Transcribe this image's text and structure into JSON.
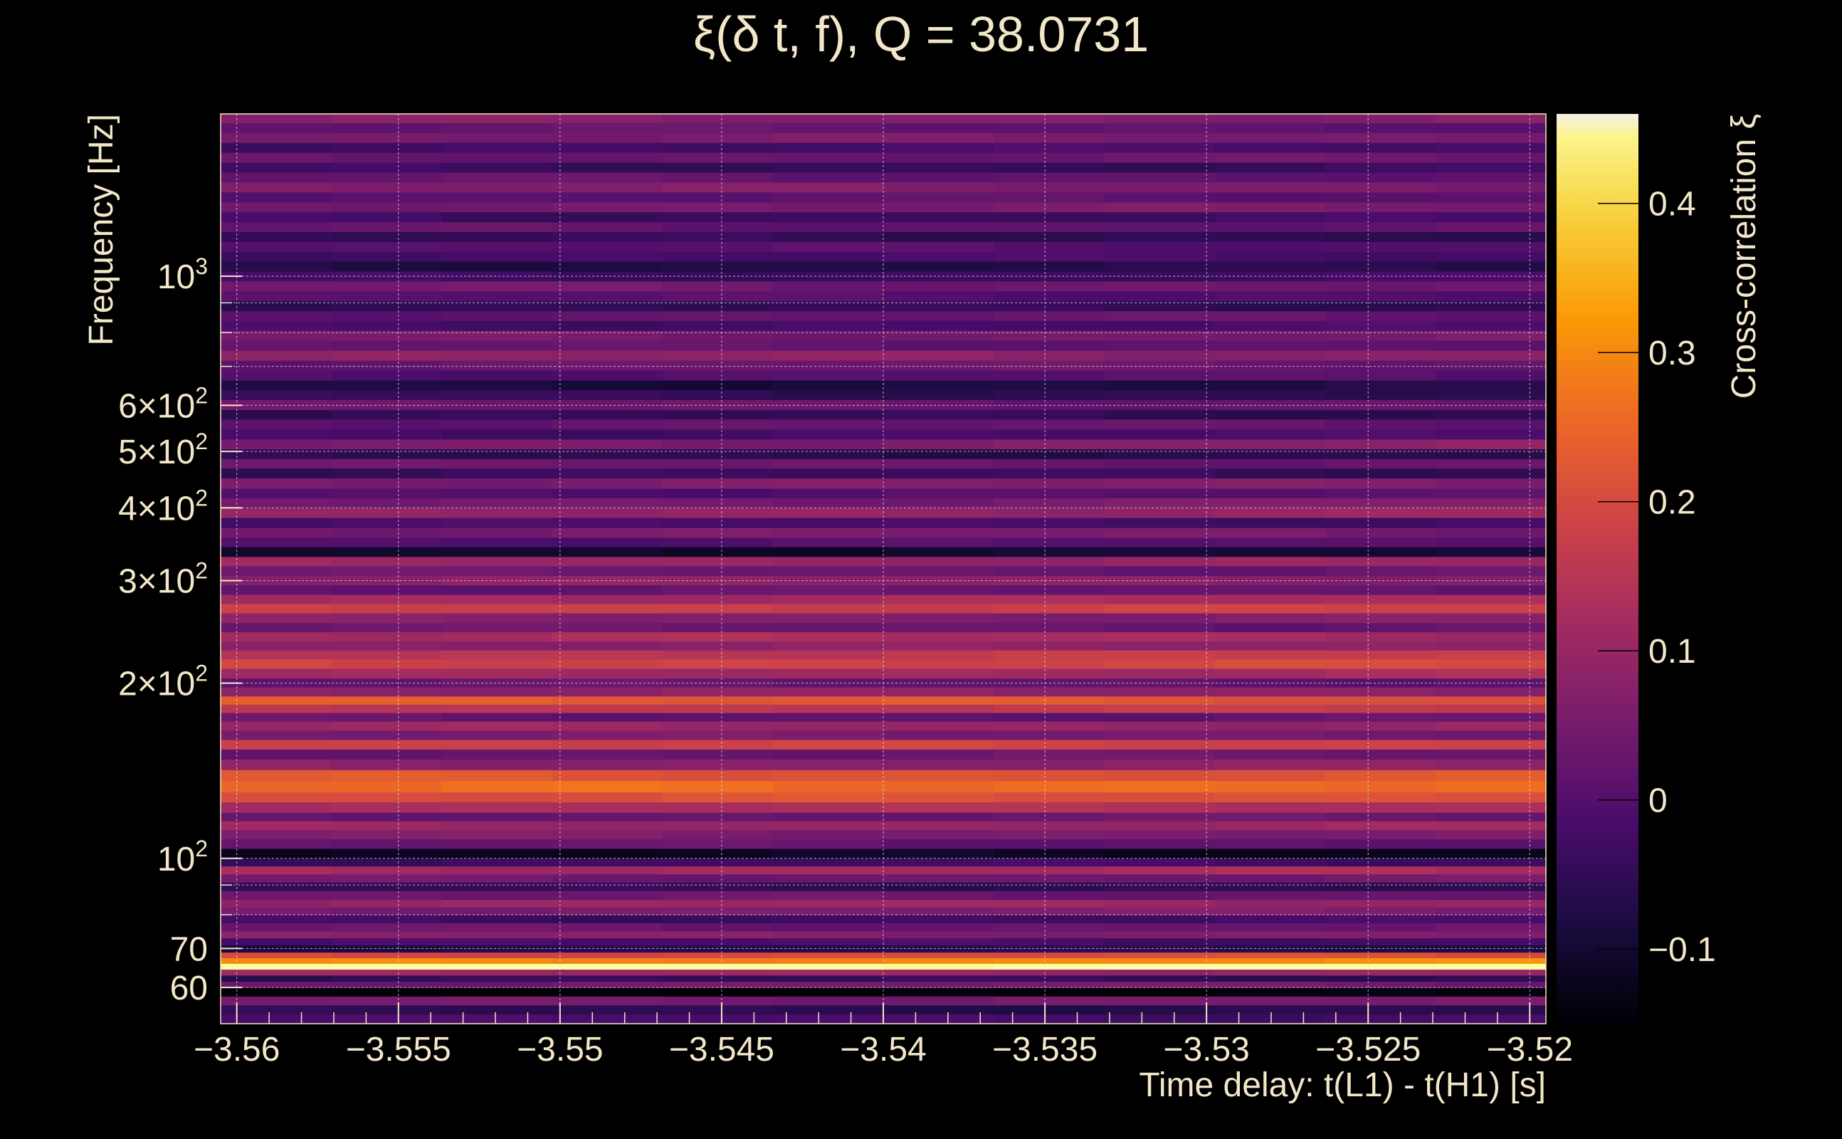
{
  "chart_data": {
    "type": "heatmap",
    "title": "ξ(δ t, f), Q = 38.0731",
    "xlabel": "Time delay: t(L1) - t(H1) [s]",
    "ylabel": "Frequency [Hz]",
    "colorbar_label": "Cross-correlation ξ",
    "xlim": [
      -3.5605,
      -3.5195
    ],
    "ylim": [
      52,
      1900
    ],
    "y_scale": "log",
    "grid": true,
    "x_ticks": [
      {
        "value": -3.56,
        "label": "−3.56"
      },
      {
        "value": -3.555,
        "label": "−3.555"
      },
      {
        "value": -3.55,
        "label": "−3.55"
      },
      {
        "value": -3.545,
        "label": "−3.545"
      },
      {
        "value": -3.54,
        "label": "−3.54"
      },
      {
        "value": -3.535,
        "label": "−3.535"
      },
      {
        "value": -3.53,
        "label": "−3.53"
      },
      {
        "value": -3.525,
        "label": "−3.525"
      },
      {
        "value": -3.52,
        "label": "−3.52"
      }
    ],
    "y_ticks": [
      {
        "value": 60,
        "base": "60",
        "exp": ""
      },
      {
        "value": 70,
        "base": "70",
        "exp": ""
      },
      {
        "value": 100,
        "base": "10",
        "exp": "2"
      },
      {
        "value": 200,
        "base": "2×10",
        "exp": "2"
      },
      {
        "value": 300,
        "base": "3×10",
        "exp": "2"
      },
      {
        "value": 400,
        "base": "4×10",
        "exp": "2"
      },
      {
        "value": 500,
        "base": "5×10",
        "exp": "2"
      },
      {
        "value": 600,
        "base": "6×10",
        "exp": "2"
      },
      {
        "value": 1000,
        "base": "10",
        "exp": "3"
      }
    ],
    "y_minor_gridlines": [
      80,
      90,
      700,
      800,
      900
    ],
    "colorbar": {
      "range": [
        -0.15,
        0.46
      ],
      "ticks": [
        {
          "value": -0.1,
          "label": "−0.1"
        },
        {
          "value": 0,
          "label": "0"
        },
        {
          "value": 0.1,
          "label": "0.1"
        },
        {
          "value": 0.2,
          "label": "0.2"
        },
        {
          "value": 0.3,
          "label": "0.3"
        },
        {
          "value": 0.4,
          "label": "0.4"
        }
      ],
      "colormap": [
        "#000004",
        "#1b0c41",
        "#4a0c6b",
        "#781c6d",
        "#a52c60",
        "#cf4446",
        "#ed6925",
        "#fb9b06",
        "#f7d13d",
        "#fcffa4"
      ],
      "top_color": "#f4efe6"
    },
    "bands": [
      {
        "f_low": 52,
        "f_high": 54,
        "value": -0.02,
        "trend": 0.0
      },
      {
        "f_low": 54,
        "f_high": 56,
        "value": -0.06,
        "trend": 0.0
      },
      {
        "f_low": 56,
        "f_high": 58,
        "value": 0.05,
        "trend": 0.0
      },
      {
        "f_low": 58,
        "f_high": 60,
        "value": -0.15,
        "trend": 0.0
      },
      {
        "f_low": 60,
        "f_high": 61.5,
        "value": 0.04,
        "trend": 0.0
      },
      {
        "f_low": 61.5,
        "f_high": 63,
        "value": -0.05,
        "trend": 0.0
      },
      {
        "f_low": 63,
        "f_high": 64.5,
        "value": 0.1,
        "trend": 0.0
      },
      {
        "f_low": 64.5,
        "f_high": 66,
        "value": 0.47,
        "trend": 0.0
      },
      {
        "f_low": 66,
        "f_high": 67.5,
        "value": 0.3,
        "trend": 0.0
      },
      {
        "f_low": 67.5,
        "f_high": 69,
        "value": 0.2,
        "trend": 0.0
      },
      {
        "f_low": 69,
        "f_high": 71,
        "value": -0.07,
        "trend": 0.0
      },
      {
        "f_low": 71,
        "f_high": 73,
        "value": -0.02,
        "trend": 0.0
      },
      {
        "f_low": 73,
        "f_high": 75,
        "value": 0.07,
        "trend": 0.0
      },
      {
        "f_low": 75,
        "f_high": 77.5,
        "value": 0.03,
        "trend": 0.0
      },
      {
        "f_low": 77.5,
        "f_high": 80,
        "value": -0.03,
        "trend": 0.0
      },
      {
        "f_low": 80,
        "f_high": 82.5,
        "value": 0.06,
        "trend": 0.0
      },
      {
        "f_low": 82.5,
        "f_high": 85,
        "value": 0.1,
        "trend": 0.0
      },
      {
        "f_low": 85,
        "f_high": 88,
        "value": 0.03,
        "trend": 0.0
      },
      {
        "f_low": 88,
        "f_high": 91,
        "value": -0.05,
        "trend": 0.0
      },
      {
        "f_low": 91,
        "f_high": 94,
        "value": 0.04,
        "trend": 0.0
      },
      {
        "f_low": 94,
        "f_high": 97,
        "value": 0.12,
        "trend": 0.0
      },
      {
        "f_low": 97,
        "f_high": 100,
        "value": -0.03,
        "trend": 0.0
      },
      {
        "f_low": 100,
        "f_high": 104,
        "value": -0.12,
        "trend": 0.0
      },
      {
        "f_low": 104,
        "f_high": 108,
        "value": 0.02,
        "trend": 0.0
      },
      {
        "f_low": 108,
        "f_high": 112,
        "value": 0.06,
        "trend": 0.0
      },
      {
        "f_low": 112,
        "f_high": 116,
        "value": 0.1,
        "trend": 0.0
      },
      {
        "f_low": 116,
        "f_high": 120,
        "value": 0.03,
        "trend": 0.0
      },
      {
        "f_low": 120,
        "f_high": 125,
        "value": 0.13,
        "trend": 0.0
      },
      {
        "f_low": 125,
        "f_high": 130,
        "value": 0.2,
        "trend": 0.02
      },
      {
        "f_low": 130,
        "f_high": 136,
        "value": 0.25,
        "trend": 0.02
      },
      {
        "f_low": 136,
        "f_high": 142,
        "value": 0.22,
        "trend": 0.0
      },
      {
        "f_low": 142,
        "f_high": 148,
        "value": 0.08,
        "trend": 0.0
      },
      {
        "f_low": 148,
        "f_high": 154,
        "value": 0.03,
        "trend": 0.0
      },
      {
        "f_low": 154,
        "f_high": 160,
        "value": 0.18,
        "trend": 0.0
      },
      {
        "f_low": 160,
        "f_high": 166,
        "value": 0.05,
        "trend": 0.0
      },
      {
        "f_low": 166,
        "f_high": 172,
        "value": 0.1,
        "trend": 0.0
      },
      {
        "f_low": 172,
        "f_high": 178,
        "value": 0.02,
        "trend": 0.0
      },
      {
        "f_low": 178,
        "f_high": 184,
        "value": 0.16,
        "trend": 0.0
      },
      {
        "f_low": 184,
        "f_high": 190,
        "value": 0.25,
        "trend": -0.05
      },
      {
        "f_low": 190,
        "f_high": 197,
        "value": 0.08,
        "trend": 0.0
      },
      {
        "f_low": 197,
        "f_high": 204,
        "value": 0.02,
        "trend": 0.0
      },
      {
        "f_low": 204,
        "f_high": 212,
        "value": 0.1,
        "trend": 0.03
      },
      {
        "f_low": 212,
        "f_high": 220,
        "value": 0.18,
        "trend": 0.02
      },
      {
        "f_low": 220,
        "f_high": 228,
        "value": 0.15,
        "trend": 0.02
      },
      {
        "f_low": 228,
        "f_high": 236,
        "value": 0.08,
        "trend": 0.0
      },
      {
        "f_low": 236,
        "f_high": 245,
        "value": 0.12,
        "trend": 0.0
      },
      {
        "f_low": 245,
        "f_high": 254,
        "value": 0.03,
        "trend": 0.0
      },
      {
        "f_low": 254,
        "f_high": 264,
        "value": 0.07,
        "trend": 0.0
      },
      {
        "f_low": 264,
        "f_high": 274,
        "value": 0.18,
        "trend": 0.0
      },
      {
        "f_low": 274,
        "f_high": 284,
        "value": 0.12,
        "trend": 0.0
      },
      {
        "f_low": 284,
        "f_high": 295,
        "value": 0.02,
        "trend": 0.0
      },
      {
        "f_low": 295,
        "f_high": 306,
        "value": 0.08,
        "trend": 0.0
      },
      {
        "f_low": 306,
        "f_high": 318,
        "value": 0.03,
        "trend": 0.0
      },
      {
        "f_low": 318,
        "f_high": 330,
        "value": 0.1,
        "trend": 0.0
      },
      {
        "f_low": 330,
        "f_high": 343,
        "value": -0.1,
        "trend": 0.0
      },
      {
        "f_low": 343,
        "f_high": 356,
        "value": 0.0,
        "trend": 0.0
      },
      {
        "f_low": 356,
        "f_high": 370,
        "value": 0.05,
        "trend": 0.0
      },
      {
        "f_low": 370,
        "f_high": 385,
        "value": -0.02,
        "trend": 0.0
      },
      {
        "f_low": 385,
        "f_high": 400,
        "value": 0.08,
        "trend": 0.03
      },
      {
        "f_low": 400,
        "f_high": 416,
        "value": 0.04,
        "trend": 0.03
      },
      {
        "f_low": 416,
        "f_high": 432,
        "value": 0.0,
        "trend": 0.0
      },
      {
        "f_low": 432,
        "f_high": 450,
        "value": 0.06,
        "trend": 0.0
      },
      {
        "f_low": 450,
        "f_high": 468,
        "value": -0.04,
        "trend": 0.0
      },
      {
        "f_low": 468,
        "f_high": 486,
        "value": 0.03,
        "trend": 0.0
      },
      {
        "f_low": 486,
        "f_high": 505,
        "value": -0.06,
        "trend": 0.0
      },
      {
        "f_low": 505,
        "f_high": 525,
        "value": 0.05,
        "trend": 0.03
      },
      {
        "f_low": 525,
        "f_high": 546,
        "value": -0.02,
        "trend": 0.0
      },
      {
        "f_low": 546,
        "f_high": 568,
        "value": 0.02,
        "trend": 0.0
      },
      {
        "f_low": 568,
        "f_high": 590,
        "value": -0.05,
        "trend": 0.0
      },
      {
        "f_low": 590,
        "f_high": 614,
        "value": 0.03,
        "trend": 0.0
      },
      {
        "f_low": 614,
        "f_high": 638,
        "value": -0.04,
        "trend": -0.02
      },
      {
        "f_low": 638,
        "f_high": 663,
        "value": -0.08,
        "trend": 0.0
      },
      {
        "f_low": 663,
        "f_high": 690,
        "value": 0.0,
        "trend": 0.0
      },
      {
        "f_low": 690,
        "f_high": 717,
        "value": 0.03,
        "trend": 0.0
      },
      {
        "f_low": 717,
        "f_high": 746,
        "value": 0.08,
        "trend": 0.0
      },
      {
        "f_low": 746,
        "f_high": 776,
        "value": 0.02,
        "trend": 0.0
      },
      {
        "f_low": 776,
        "f_high": 807,
        "value": 0.05,
        "trend": 0.0
      },
      {
        "f_low": 807,
        "f_high": 839,
        "value": -0.02,
        "trend": 0.0
      },
      {
        "f_low": 839,
        "f_high": 872,
        "value": 0.02,
        "trend": 0.0
      },
      {
        "f_low": 872,
        "f_high": 907,
        "value": -0.05,
        "trend": 0.0
      },
      {
        "f_low": 907,
        "f_high": 943,
        "value": 0.0,
        "trend": 0.0
      },
      {
        "f_low": 943,
        "f_high": 981,
        "value": 0.04,
        "trend": 0.0
      },
      {
        "f_low": 981,
        "f_high": 1020,
        "value": -0.03,
        "trend": 0.0
      },
      {
        "f_low": 1020,
        "f_high": 1061,
        "value": -0.07,
        "trend": 0.0
      },
      {
        "f_low": 1061,
        "f_high": 1103,
        "value": -0.02,
        "trend": 0.0
      },
      {
        "f_low": 1103,
        "f_high": 1147,
        "value": 0.0,
        "trend": 0.0
      },
      {
        "f_low": 1147,
        "f_high": 1193,
        "value": -0.05,
        "trend": 0.0
      },
      {
        "f_low": 1193,
        "f_high": 1240,
        "value": 0.02,
        "trend": 0.0
      },
      {
        "f_low": 1240,
        "f_high": 1290,
        "value": -0.03,
        "trend": 0.0
      },
      {
        "f_low": 1290,
        "f_high": 1341,
        "value": 0.05,
        "trend": 0.0
      },
      {
        "f_low": 1341,
        "f_high": 1395,
        "value": 0.01,
        "trend": 0.0
      },
      {
        "f_low": 1395,
        "f_high": 1451,
        "value": 0.06,
        "trend": 0.0
      },
      {
        "f_low": 1451,
        "f_high": 1509,
        "value": 0.02,
        "trend": 0.0
      },
      {
        "f_low": 1509,
        "f_high": 1569,
        "value": -0.04,
        "trend": 0.0
      },
      {
        "f_low": 1569,
        "f_high": 1632,
        "value": 0.03,
        "trend": 0.0
      },
      {
        "f_low": 1632,
        "f_high": 1697,
        "value": -0.02,
        "trend": 0.0
      },
      {
        "f_low": 1697,
        "f_high": 1765,
        "value": 0.05,
        "trend": 0.0
      },
      {
        "f_low": 1765,
        "f_high": 1835,
        "value": 0.02,
        "trend": 0.0
      },
      {
        "f_low": 1835,
        "f_high": 1900,
        "value": 0.07,
        "trend": 0.0
      }
    ]
  }
}
